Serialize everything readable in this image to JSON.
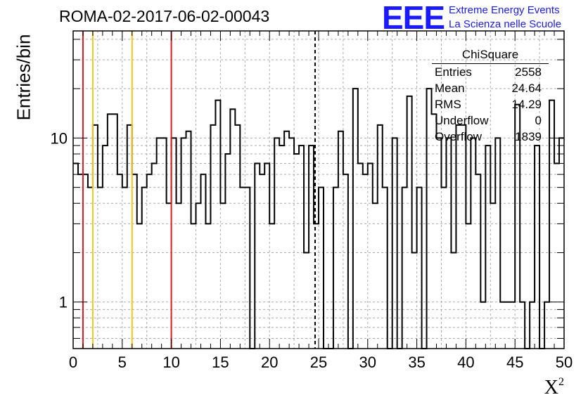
{
  "header": {
    "run_title": "ROMA-02-2017-06-02-00043"
  },
  "logo": {
    "mark": "EEE",
    "line1": "Extreme Energy Events",
    "line2": "La Scienza nelle Scuole",
    "color": "#1a1aff"
  },
  "stats_box": {
    "title": "ChiSquare",
    "rows": [
      {
        "label": "Entries",
        "value": "2558"
      },
      {
        "label": "Mean",
        "value": "24.64"
      },
      {
        "label": "RMS",
        "value": "14.29"
      },
      {
        "label": "Underflow",
        "value": "0"
      },
      {
        "label": "Overflow",
        "value": "1839"
      }
    ]
  },
  "chart_data": {
    "type": "histogram",
    "ylabel": "Entries/bin",
    "xlabel": "X",
    "xlabel_sup": "2",
    "xlim": [
      0,
      50
    ],
    "ylim": [
      0.52,
      45
    ],
    "yscale": "log",
    "grid": true,
    "x_ticks": [
      "0",
      "5",
      "10",
      "15",
      "20",
      "25",
      "30",
      "35",
      "40",
      "45",
      "50"
    ],
    "y_ticks": [
      "1",
      "10"
    ],
    "bin_width": 0.5,
    "values": [
      7,
      6,
      6,
      5,
      12,
      5,
      9,
      14,
      14,
      6,
      5,
      12,
      6,
      3,
      5,
      6,
      7,
      10,
      10,
      4,
      10,
      4,
      10,
      11,
      3,
      4,
      6,
      3,
      12,
      17,
      4,
      8,
      15,
      12,
      5,
      5,
      0,
      7,
      6,
      7,
      3,
      10,
      9,
      11,
      10,
      8,
      9,
      2,
      9,
      3,
      5,
      0,
      0,
      5,
      11,
      6,
      0,
      20,
      7,
      6,
      7,
      4,
      12,
      5,
      0,
      10,
      0,
      5,
      18,
      2,
      5,
      0,
      20,
      14,
      10,
      5,
      10,
      2,
      12,
      12,
      3,
      10,
      6,
      1,
      9,
      4,
      10,
      1,
      1,
      1,
      16,
      1,
      0,
      1,
      9,
      0,
      1,
      17,
      7,
      10
    ],
    "vertical_lines": [
      {
        "x": 1,
        "color": "#e41a1c",
        "style": "solid"
      },
      {
        "x": 2,
        "color": "#f5c518",
        "style": "solid"
      },
      {
        "x": 6,
        "color": "#f5c518",
        "style": "solid"
      },
      {
        "x": 10,
        "color": "#e41a1c",
        "style": "solid"
      },
      {
        "x": 24.64,
        "color": "#000000",
        "style": "dashed"
      }
    ]
  }
}
